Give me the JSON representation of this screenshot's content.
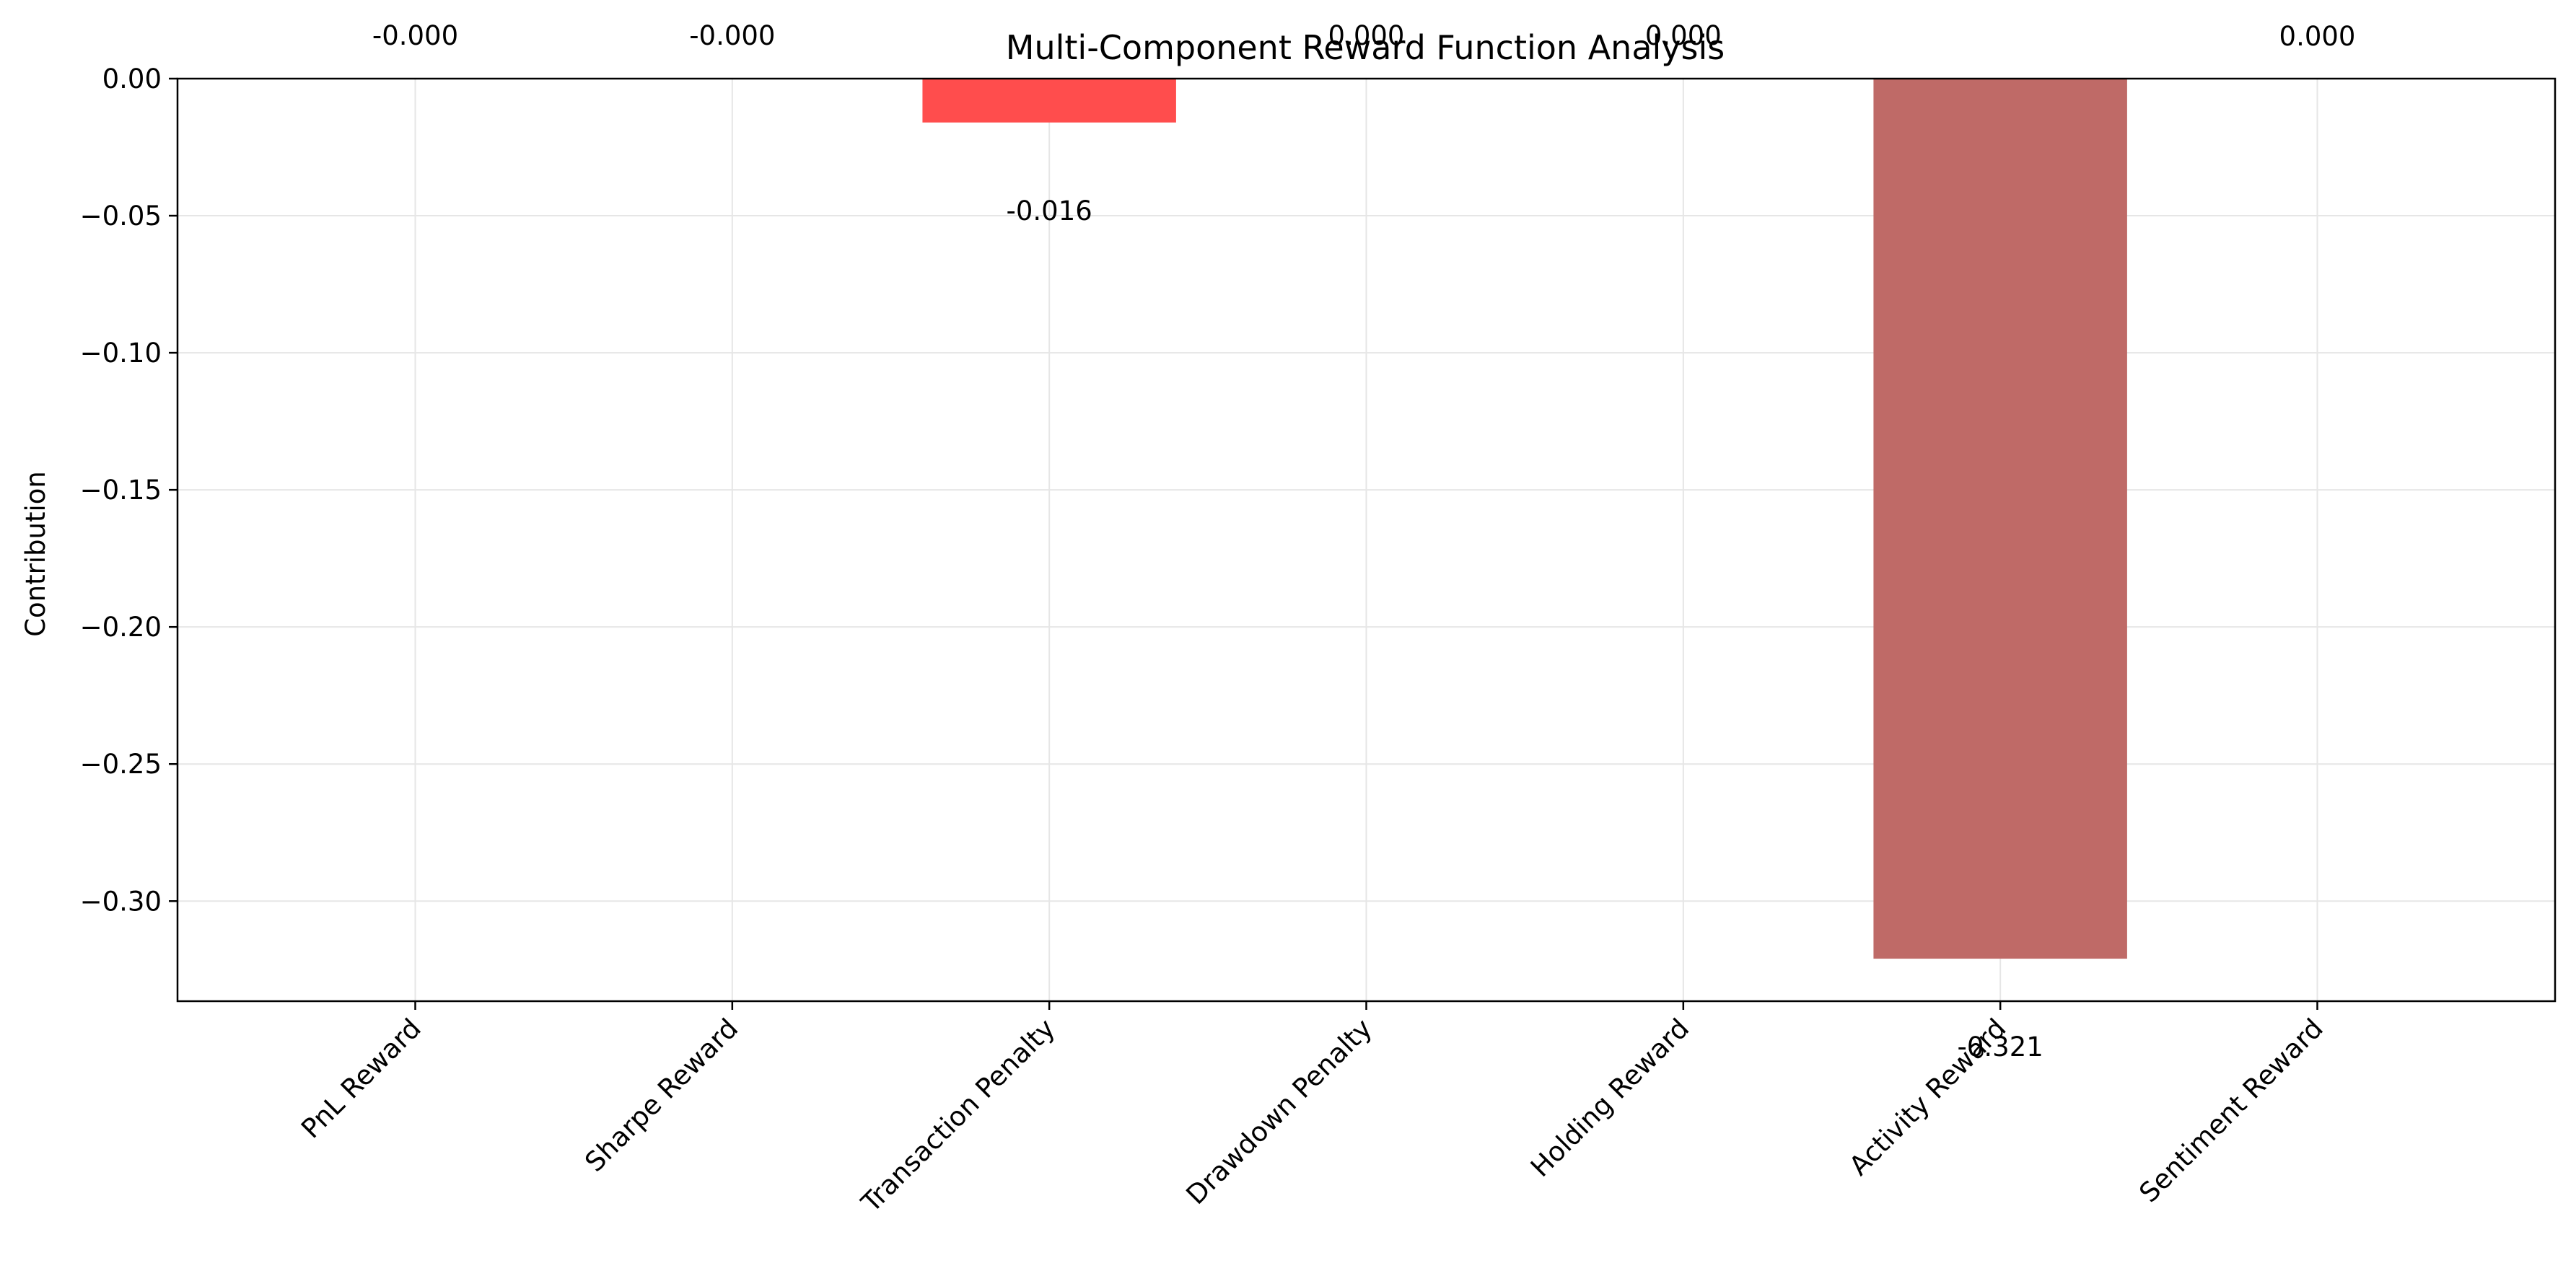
{
  "chart_data": {
    "type": "bar",
    "title": "Multi-Component Reward Function Analysis",
    "xlabel": "",
    "ylabel": "Contribution",
    "categories": [
      "PnL Reward",
      "Sharpe Reward",
      "Transaction Penalty",
      "Drawdown Penalty",
      "Holding Reward",
      "Activity Reward",
      "Sentiment Reward"
    ],
    "values": [
      -0.0,
      -0.0,
      -0.016,
      0.0,
      0.0,
      -0.321,
      0.0
    ],
    "value_labels": [
      "-0.000",
      "-0.000",
      "-0.016",
      "0.000",
      "0.000",
      "-0.321",
      "0.000"
    ],
    "bar_colors": [
      "#ff4d4d",
      "#ff4d4d",
      "#ff4d4d",
      "#ff4d4d",
      "#ff4d4d",
      "#bf6a67",
      "#ff4d4d"
    ],
    "ylim": [
      -0.3365,
      0.0
    ],
    "yticks": [
      0.0,
      -0.05,
      -0.1,
      -0.15,
      -0.2,
      -0.25,
      -0.3
    ],
    "ytick_labels": [
      "0.00",
      "−0.05",
      "−0.10",
      "−0.15",
      "−0.20",
      "−0.25",
      "−0.30"
    ],
    "grid": true,
    "legend": "none"
  },
  "colors": {
    "grid": "#e6e6e6",
    "axis": "#000000"
  }
}
